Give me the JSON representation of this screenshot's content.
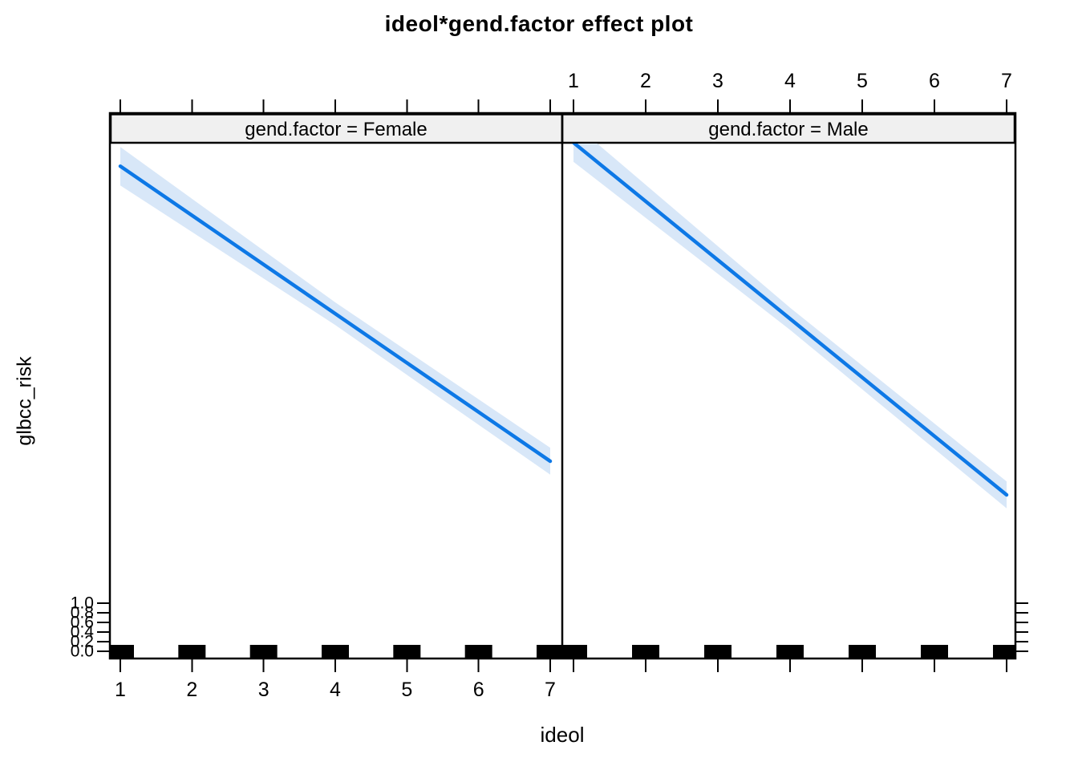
{
  "chart_data": {
    "type": "line",
    "title": "ideol*gend.factor effect plot",
    "xlabel": "ideol",
    "ylabel": "glbcc_risk",
    "x_ticks": [
      1,
      2,
      3,
      4,
      5,
      6,
      7
    ],
    "y_tick_labels": [
      "1.0",
      "0.8",
      "0.6",
      "0.4",
      "0.2",
      "0.0"
    ],
    "top_axis_labels_facet": "gend.factor = Male",
    "bottom_axis_labels_facet": "gend.factor = Female",
    "facets": [
      {
        "label": "gend.factor = Female",
        "line": {
          "x": [
            1,
            7
          ],
          "y": [
            10.08,
            3.95
          ]
        },
        "band": {
          "x": [
            1,
            4,
            7
          ],
          "upper": [
            10.48,
            7.25,
            4.23
          ],
          "lower": [
            9.68,
            6.78,
            3.67
          ]
        },
        "rug_x": [
          1,
          2,
          3,
          4,
          5,
          6,
          7
        ]
      },
      {
        "label": "gend.factor = Male",
        "line": {
          "x": [
            1,
            7
          ],
          "y": [
            10.57,
            3.25
          ]
        },
        "band": {
          "x": [
            1,
            4,
            7
          ],
          "upper": [
            10.97,
            7.14,
            3.53
          ],
          "lower": [
            10.17,
            6.68,
            2.97
          ]
        },
        "rug_x": [
          1,
          2,
          3,
          4,
          5,
          6,
          7
        ]
      }
    ],
    "colors": {
      "line": "#0d78e6",
      "band": "#d8e7f8",
      "strip_bg": "#f0f0f0",
      "border": "#000000",
      "text": "#000000",
      "rug": "#000000"
    }
  }
}
